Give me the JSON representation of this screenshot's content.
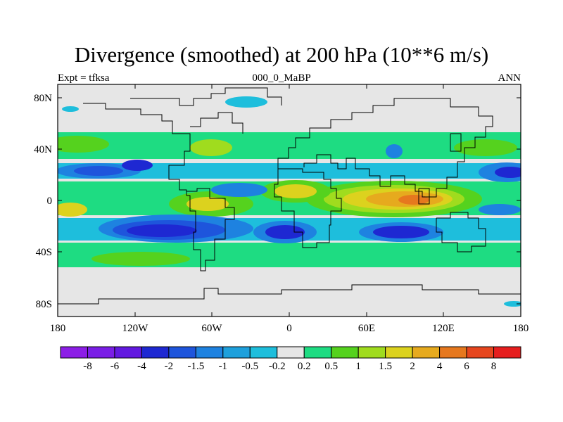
{
  "title": "Divergence (smoothed) at 200 hPa (10**6 m/s)",
  "subtitle_left": "Expt = tfksa",
  "subtitle_center": "000_0_MaBP",
  "subtitle_right": "ANN",
  "map": {
    "lon_ticks": [
      "180",
      "120W",
      "60W",
      "0",
      "60E",
      "120E",
      "180"
    ],
    "lat_ticks": [
      "80N",
      "40N",
      "0",
      "40S",
      "80S"
    ]
  },
  "colorbar": {
    "colors": [
      "#8c1ee6",
      "#7a1ee6",
      "#6219e0",
      "#1e28d2",
      "#1e55dc",
      "#1e82e0",
      "#1ea0dc",
      "#1ebedc",
      "#e6e6e6",
      "#1edc82",
      "#55d21e",
      "#a0dc1e",
      "#dcd21e",
      "#e6aa1e",
      "#e6781e",
      "#e6461e",
      "#e61e1e"
    ],
    "labels": [
      "-8",
      "-6",
      "-4",
      "-2",
      "-1.5",
      "-1",
      "-0.5",
      "-0.2",
      "0.2",
      "0.5",
      "1",
      "1.5",
      "2",
      "4",
      "6",
      "8"
    ]
  }
}
